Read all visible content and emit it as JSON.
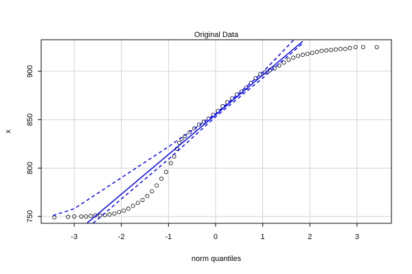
{
  "chart_data": {
    "type": "qqplot",
    "title": "Original Data",
    "x_label": "norm quantiles",
    "y_label": "x",
    "x": [
      -3.42,
      -3.13,
      -3.0,
      -2.85,
      -2.75,
      -2.65,
      -2.55,
      -2.45,
      -2.35,
      -2.25,
      -2.15,
      -2.05,
      -1.95,
      -1.85,
      -1.75,
      -1.65,
      -1.55,
      -1.45,
      -1.35,
      -1.25,
      -1.15,
      -1.05,
      -0.95,
      -0.88,
      -0.82,
      -0.77,
      -0.72,
      -0.65,
      -0.55,
      -0.45,
      -0.35,
      -0.25,
      -0.15,
      -0.05,
      0.05,
      0.15,
      0.25,
      0.35,
      0.45,
      0.55,
      0.65,
      0.75,
      0.85,
      0.95,
      1.05,
      1.15,
      1.25,
      1.35,
      1.45,
      1.55,
      1.65,
      1.75,
      1.85,
      1.95,
      2.05,
      2.15,
      2.25,
      2.35,
      2.45,
      2.55,
      2.65,
      2.75,
      2.85,
      2.97,
      3.13,
      3.42
    ],
    "y": [
      749,
      749.5,
      750,
      750,
      750,
      750.5,
      751,
      751,
      751.5,
      752,
      753,
      754.5,
      756,
      758,
      761,
      764,
      767,
      771,
      776,
      782,
      789,
      796,
      805,
      812,
      820,
      826,
      830,
      833,
      837,
      841,
      845,
      848,
      851,
      855,
      859,
      864,
      868,
      872,
      876,
      879,
      883,
      888,
      893,
      897,
      899,
      901,
      903,
      906,
      909,
      912,
      914,
      916,
      917,
      918,
      919,
      920,
      921,
      921.5,
      922,
      922.5,
      923,
      923,
      924,
      925,
      925,
      925
    ],
    "point_color": "#000000",
    "reference_line": {
      "color": "#0000ff",
      "x": [
        -2.9,
        1.85
      ],
      "y": [
        736,
        931
      ]
    },
    "band_upper": {
      "color": "#0000ff",
      "x": [
        -3.45,
        -3,
        -2,
        -1,
        0,
        1,
        1.65
      ],
      "y": [
        751,
        758,
        790,
        822,
        856,
        899,
        932
      ]
    },
    "band_lower": {
      "color": "#0000ff",
      "x": [
        -2.6,
        -2,
        -1,
        0,
        1,
        1.85
      ],
      "y": [
        743,
        768,
        809,
        853,
        893,
        929
      ]
    },
    "xlim": [
      -3.7,
      3.73
    ],
    "ylim": [
      742.9,
      932.6
    ],
    "xticks": [
      -3,
      -2,
      -1,
      0,
      1,
      2,
      3
    ],
    "yticks": [
      750,
      800,
      850,
      900
    ],
    "grid": true
  }
}
